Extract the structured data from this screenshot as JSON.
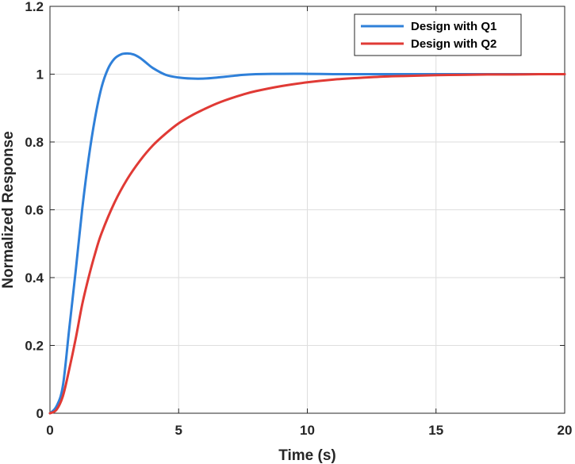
{
  "chart_data": {
    "type": "line",
    "xlabel": "Time (s)",
    "ylabel": "Normalized Response",
    "xlim": [
      0,
      20
    ],
    "ylim": [
      0,
      1.2
    ],
    "xticks": [
      0,
      5,
      10,
      15,
      20
    ],
    "xtick_labels": [
      "0",
      "5",
      "10",
      "15",
      "20"
    ],
    "yticks": [
      0,
      0.2,
      0.4,
      0.6,
      0.8,
      1,
      1.2
    ],
    "ytick_labels": [
      "0",
      "0.2",
      "0.4",
      "0.6",
      "0.8",
      "1",
      "1.2"
    ],
    "grid": true,
    "legend": "top-right",
    "series": [
      {
        "name": "Design with Q1",
        "color": "#2f80d9",
        "x": [
          0,
          0.25,
          0.5,
          0.75,
          1.0,
          1.25,
          1.5,
          1.75,
          2.0,
          2.25,
          2.5,
          2.75,
          3.0,
          3.25,
          3.5,
          3.75,
          4.0,
          4.5,
          5.0,
          5.5,
          6.0,
          6.5,
          7.0,
          7.5,
          8.0,
          9.0,
          10.0,
          11.0,
          12.0,
          13.0,
          14.0,
          15.0,
          16.0,
          17.0,
          18.0,
          19.0,
          20.0
        ],
        "y": [
          0,
          0.02,
          0.08,
          0.25,
          0.42,
          0.6,
          0.75,
          0.87,
          0.96,
          1.015,
          1.045,
          1.058,
          1.061,
          1.058,
          1.048,
          1.033,
          1.018,
          0.998,
          0.99,
          0.987,
          0.987,
          0.99,
          0.994,
          0.998,
          1.0,
          1.001,
          1.001,
          1.0,
          1.0,
          1.0,
          1.0,
          1.0,
          1.0,
          1.0,
          1.0,
          1.0,
          1.0
        ]
      },
      {
        "name": "Design with Q2",
        "color": "#e03a35",
        "x": [
          0,
          0.25,
          0.5,
          0.75,
          1.0,
          1.25,
          1.5,
          1.75,
          2.0,
          2.5,
          3.0,
          3.5,
          4.0,
          4.5,
          5.0,
          5.5,
          6.0,
          6.5,
          7.0,
          7.5,
          8.0,
          9.0,
          10.0,
          11.0,
          12.0,
          13.0,
          14.0,
          15.0,
          16.0,
          17.0,
          18.0,
          19.0,
          20.0
        ],
        "y": [
          0,
          0.01,
          0.05,
          0.13,
          0.22,
          0.32,
          0.4,
          0.47,
          0.53,
          0.62,
          0.69,
          0.745,
          0.79,
          0.825,
          0.855,
          0.878,
          0.897,
          0.914,
          0.928,
          0.94,
          0.95,
          0.965,
          0.976,
          0.984,
          0.989,
          0.993,
          0.995,
          0.997,
          0.998,
          0.999,
          0.999,
          1.0,
          1.0
        ]
      }
    ]
  }
}
